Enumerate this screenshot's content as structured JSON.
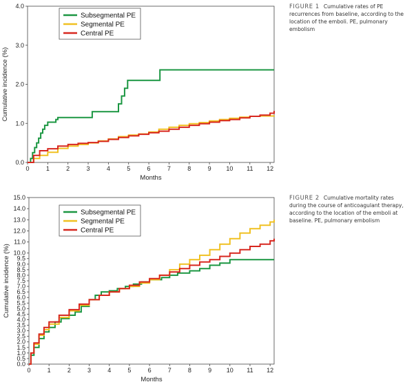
{
  "figure1": {
    "caption_label": "FIGURE 1",
    "caption_text": "Cumulative rates of PE recurrences from baseline, according to the location of the emboli. PE, pulmonary embolism",
    "chart_data": {
      "type": "line",
      "step": true,
      "xlabel": "Months",
      "ylabel": "Cumulative incidence (%)",
      "xlim": [
        0,
        12.2
      ],
      "ylim": [
        0,
        4.0
      ],
      "xticks": [
        0,
        1,
        2,
        3,
        4,
        5,
        6,
        7,
        8,
        9,
        10,
        11,
        12
      ],
      "yticks": [
        0.0,
        1.0,
        2.0,
        3.0,
        4.0
      ],
      "ytick_labels": [
        "0.0",
        "1.0",
        "2.0",
        "3.0",
        "4.0"
      ],
      "legend_position": "top-left",
      "series": [
        {
          "name": "Subsegmental PE",
          "color": "#1a9641",
          "x": [
            0,
            0.15,
            0.25,
            0.35,
            0.45,
            0.55,
            0.65,
            0.75,
            0.85,
            1.0,
            1.2,
            1.4,
            1.5,
            2.3,
            3.2,
            3.8,
            4.3,
            4.5,
            4.65,
            4.8,
            4.95,
            5.05,
            6.3,
            6.55,
            6.7,
            12.2
          ],
          "y": [
            0,
            0.1,
            0.25,
            0.38,
            0.5,
            0.62,
            0.75,
            0.85,
            0.95,
            1.03,
            1.03,
            1.1,
            1.15,
            1.15,
            1.3,
            1.3,
            1.3,
            1.5,
            1.7,
            1.9,
            2.1,
            2.1,
            2.1,
            2.37,
            2.37,
            2.37
          ]
        },
        {
          "name": "Segmental PE",
          "color": "#f0c020",
          "x": [
            0,
            0.3,
            0.6,
            1.0,
            1.5,
            2.0,
            2.5,
            3.0,
            3.5,
            4.0,
            4.5,
            5.0,
            5.5,
            6.0,
            6.5,
            7.0,
            7.5,
            8.0,
            8.5,
            9.0,
            9.5,
            10.0,
            10.5,
            11.0,
            11.5,
            12.2
          ],
          "y": [
            0,
            0.1,
            0.18,
            0.26,
            0.36,
            0.42,
            0.46,
            0.5,
            0.55,
            0.6,
            0.66,
            0.7,
            0.73,
            0.78,
            0.85,
            0.9,
            0.95,
            0.99,
            1.02,
            1.06,
            1.1,
            1.13,
            1.16,
            1.18,
            1.19,
            1.2
          ]
        },
        {
          "name": "Central PE",
          "color": "#d7261e",
          "x": [
            0,
            0.3,
            0.6,
            1.0,
            1.5,
            2.0,
            2.5,
            3.0,
            3.5,
            4.0,
            4.5,
            5.0,
            5.5,
            6.0,
            6.5,
            7.0,
            7.5,
            8.0,
            8.5,
            9.0,
            9.5,
            10.0,
            10.5,
            11.0,
            11.5,
            12.0,
            12.2
          ],
          "y": [
            0,
            0.18,
            0.3,
            0.35,
            0.42,
            0.46,
            0.49,
            0.51,
            0.54,
            0.59,
            0.64,
            0.68,
            0.72,
            0.76,
            0.8,
            0.85,
            0.9,
            0.95,
            0.99,
            1.03,
            1.07,
            1.1,
            1.14,
            1.18,
            1.21,
            1.26,
            1.32
          ]
        }
      ]
    }
  },
  "figure2": {
    "caption_label": "FIGURE 2",
    "caption_text": "Cumulative mortality rates during the course of anticoagulant therapy, according to the location of the emboli at baseline. PE, pulmonary embolism",
    "chart_data": {
      "type": "line",
      "step": true,
      "xlabel": "Months",
      "ylabel": "Cumulative incidence (%)",
      "xlim": [
        0,
        12.2
      ],
      "ylim": [
        0,
        15.0
      ],
      "xticks": [
        0,
        1,
        2,
        3,
        4,
        5,
        6,
        7,
        8,
        9,
        10,
        11,
        12
      ],
      "yticks": [
        0,
        0.5,
        1.0,
        1.5,
        2.0,
        2.5,
        3.0,
        3.5,
        4.0,
        4.5,
        5.0,
        5.5,
        6.0,
        6.5,
        7.0,
        7.5,
        8.0,
        8.5,
        9.0,
        9.5,
        10.0,
        11.0,
        12.0,
        13.0,
        14.0,
        15.0
      ],
      "ytick_labels": [
        "0.0",
        "0.5",
        "1.0",
        "1.5",
        "2.0",
        "2.5",
        "3.0",
        "3.5",
        "4.0",
        "4.5",
        "5.0",
        "5.5",
        "6.0",
        "6.5",
        "7.0",
        "7.5",
        "8.0",
        "8.5",
        "9.0",
        "9.5",
        "10.0",
        "11.0",
        "12.0",
        "13.0",
        "14.0",
        "15.0"
      ],
      "legend_position": "top-left",
      "series": [
        {
          "name": "Subsegmental PE",
          "color": "#1a9641",
          "x": [
            0,
            0.1,
            0.25,
            0.5,
            0.75,
            1.0,
            1.3,
            1.6,
            2.0,
            2.3,
            2.6,
            3.0,
            3.3,
            3.6,
            4.0,
            4.4,
            4.8,
            5.2,
            5.6,
            6.0,
            6.6,
            7.0,
            7.4,
            8.0,
            8.5,
            9.0,
            9.5,
            10.0,
            10.5,
            11.0,
            12.2
          ],
          "y": [
            0,
            0.8,
            1.5,
            2.3,
            2.9,
            3.3,
            3.8,
            4.1,
            4.4,
            4.7,
            5.2,
            5.8,
            6.2,
            6.5,
            6.6,
            6.8,
            7.0,
            7.2,
            7.4,
            7.6,
            7.8,
            8.0,
            8.2,
            8.4,
            8.6,
            8.9,
            9.1,
            9.4,
            9.4,
            9.4,
            9.4
          ]
        },
        {
          "name": "Segmental PE",
          "color": "#f0c020",
          "x": [
            0,
            0.1,
            0.25,
            0.5,
            0.75,
            1.0,
            1.5,
            2.0,
            2.5,
            3.0,
            3.5,
            4.0,
            4.5,
            5.0,
            5.5,
            6.0,
            6.5,
            7.0,
            7.5,
            8.0,
            8.5,
            9.0,
            9.5,
            10.0,
            10.5,
            11.0,
            11.5,
            12.0,
            12.2
          ],
          "y": [
            0,
            1.0,
            1.8,
            2.6,
            3.1,
            3.6,
            4.2,
            4.8,
            5.3,
            5.8,
            6.2,
            6.5,
            6.8,
            7.0,
            7.3,
            7.6,
            8.0,
            8.5,
            9.0,
            9.4,
            9.8,
            10.3,
            10.8,
            11.3,
            11.8,
            12.2,
            12.5,
            12.8,
            13.0
          ]
        },
        {
          "name": "Central PE",
          "color": "#d7261e",
          "x": [
            0,
            0.1,
            0.25,
            0.5,
            0.75,
            1.0,
            1.5,
            2.0,
            2.5,
            3.0,
            3.5,
            4.0,
            4.5,
            5.0,
            5.5,
            6.0,
            6.5,
            7.0,
            7.5,
            8.0,
            8.5,
            9.0,
            9.5,
            10.0,
            10.5,
            11.0,
            11.5,
            12.0,
            12.2
          ],
          "y": [
            0,
            1.0,
            1.9,
            2.7,
            3.3,
            3.8,
            4.4,
            4.9,
            5.4,
            5.8,
            6.2,
            6.5,
            6.8,
            7.1,
            7.4,
            7.7,
            8.0,
            8.3,
            8.6,
            8.9,
            9.2,
            9.4,
            9.7,
            10.0,
            10.3,
            10.6,
            10.8,
            11.1,
            11.3
          ]
        }
      ]
    }
  }
}
